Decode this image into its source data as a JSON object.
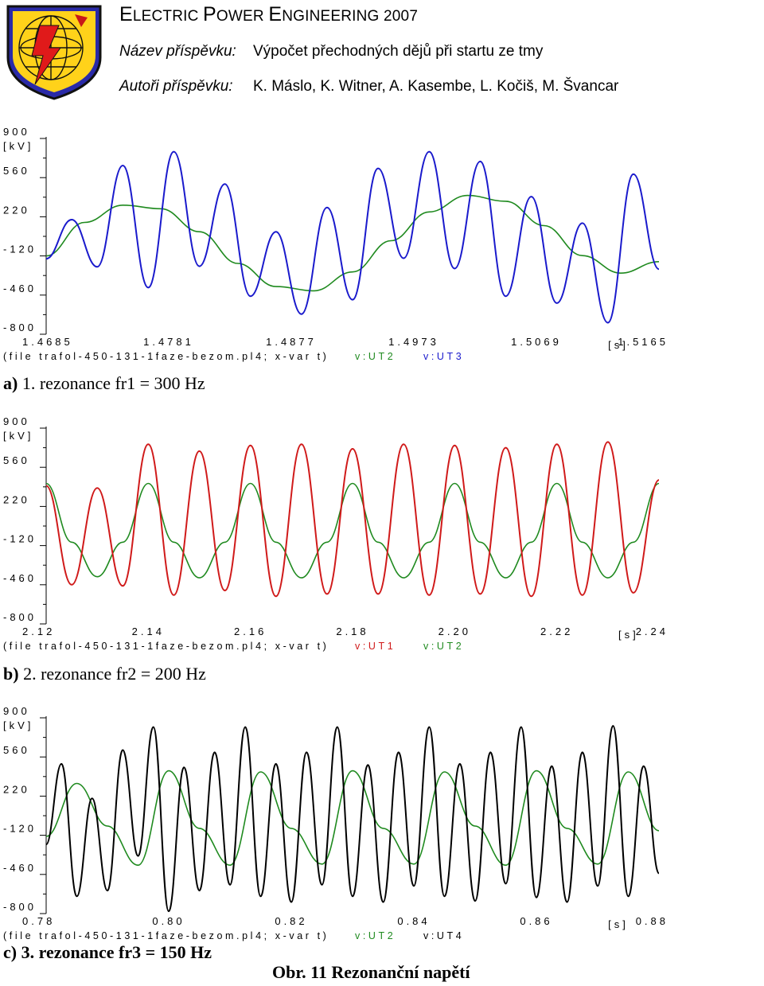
{
  "header": {
    "conference_title": [
      "E",
      "LECTRIC ",
      "P",
      "OWER ",
      "E",
      "NGINEERING 2007"
    ],
    "title_label": "Název příspěvku:",
    "title_value": "Výpočet přechodných dějů při startu ze tmy",
    "authors_label": "Autoři příspěvku:",
    "authors_value": "K. Máslo, K. Witner, A. Kasembe, L. Kočiš, M. Švancar"
  },
  "colors": {
    "blue": "#1a1acc",
    "green": "#1f8a1f",
    "red": "#d01a1a",
    "black": "#000000"
  },
  "chart_data": [
    {
      "type": "line",
      "caption_marker": "a)",
      "caption_text": "1. rezonance  fr1 = 300 Hz",
      "y_tick_labels": [
        "900",
        "560",
        "220",
        "-120",
        "-460",
        "-800"
      ],
      "y_unit": "[kV]",
      "x_unit": "[s]",
      "x_tick_labels": [
        "1.4685",
        "1.4781",
        "1.4877",
        "1.4973",
        "1.5069",
        "1.5165"
      ],
      "xlim": [
        1.4685,
        1.5165
      ],
      "ylim": [
        -800,
        900
      ],
      "footer_file": "(file trafol-450-131-1faze-bezom.pl4; x-var t)",
      "series": [
        {
          "name": "v:UT2",
          "color": "#1f8a1f",
          "shape": "fundamental",
          "x": [
            1.4685,
            1.4715,
            1.4745,
            1.4775,
            1.4805,
            1.4835,
            1.4865,
            1.4895,
            1.4925,
            1.4955,
            1.4985,
            1.5015,
            1.5045,
            1.5075,
            1.5105,
            1.5135,
            1.5165
          ],
          "y": [
            -120,
            171,
            321,
            290,
            90,
            -185,
            -386,
            -423,
            -259,
            12,
            262,
            405,
            355,
            143,
            -117,
            -269,
            -170
          ]
        },
        {
          "name": "v:UT3",
          "color": "#1a1acc",
          "shape": "resonant",
          "x": [
            1.4685,
            1.4705,
            1.4725,
            1.4745,
            1.4765,
            1.4785,
            1.4805,
            1.4825,
            1.4845,
            1.4865,
            1.4885,
            1.4905,
            1.4925,
            1.4945,
            1.4965,
            1.4985,
            1.5005,
            1.5025,
            1.5045,
            1.5065,
            1.5085,
            1.5105,
            1.5125,
            1.5145,
            1.5165
          ],
          "y": [
            -145,
            195,
            -215,
            665,
            -395,
            785,
            -210,
            505,
            -470,
            90,
            -625,
            300,
            -500,
            640,
            -140,
            785,
            -230,
            700,
            -470,
            395,
            -530,
            165,
            -700,
            590,
            -235
          ]
        }
      ]
    },
    {
      "type": "line",
      "caption_marker": "b)",
      "caption_text": "2. rezonance  fr2 = 200 Hz",
      "y_tick_labels": [
        "900",
        "560",
        "220",
        "-120",
        "-460",
        "-800"
      ],
      "y_unit": "[kV]",
      "x_unit": "[s]",
      "x_tick_labels": [
        "2.12",
        "2.14",
        "2.16",
        "2.18",
        "2.20",
        "2.22",
        "2.24"
      ],
      "xlim": [
        2.12,
        2.24
      ],
      "ylim": [
        -800,
        900
      ],
      "footer_file": "(file trafol-450-131-1faze-bezom.pl4; x-var t)",
      "series": [
        {
          "name": "v:UT1",
          "color": "#d01a1a",
          "shape": "resonant",
          "x": [
            2.12,
            2.125,
            2.13,
            2.135,
            2.14,
            2.145,
            2.15,
            2.155,
            2.16,
            2.165,
            2.17,
            2.175,
            2.18,
            2.185,
            2.19,
            2.195,
            2.2,
            2.205,
            2.21,
            2.215,
            2.22,
            2.225,
            2.23,
            2.235,
            2.24
          ],
          "y": [
            400,
            -460,
            380,
            -470,
            760,
            -550,
            700,
            -510,
            750,
            -560,
            760,
            -540,
            720,
            -540,
            760,
            -550,
            750,
            -540,
            730,
            -560,
            760,
            -550,
            780,
            -530,
            450
          ]
        },
        {
          "name": "v:UT2",
          "color": "#1f8a1f",
          "shape": "fundamental",
          "x": [
            2.12,
            2.125,
            2.13,
            2.135,
            2.14,
            2.145,
            2.15,
            2.155,
            2.16,
            2.165,
            2.17,
            2.175,
            2.18,
            2.185,
            2.19,
            2.195,
            2.2,
            2.205,
            2.21,
            2.215,
            2.22,
            2.225,
            2.23,
            2.235,
            2.24
          ],
          "y": [
            420,
            -90,
            -390,
            -90,
            420,
            -90,
            -400,
            -90,
            420,
            -90,
            -400,
            -90,
            420,
            -90,
            -400,
            -90,
            420,
            -90,
            -400,
            -90,
            420,
            -90,
            -400,
            -90,
            420
          ]
        }
      ]
    },
    {
      "type": "line",
      "caption_marker": "c)",
      "caption_text": "3. rezonance  fr3 = 150 Hz",
      "y_tick_labels": [
        "900",
        "560",
        "220",
        "-120",
        "-460",
        "-800"
      ],
      "y_unit": "[kV]",
      "x_unit": "[s]",
      "x_tick_labels": [
        "0.78",
        "0.80",
        "0.82",
        "0.84",
        "0.86",
        "0.88"
      ],
      "xlim": [
        0.78,
        0.88
      ],
      "ylim": [
        -800,
        900
      ],
      "footer_file": "(file trafol-450-131-1faze-bezom.pl4; x-var t)",
      "series": [
        {
          "name": "v:UT2",
          "color": "#1f8a1f",
          "shape": "fundamental",
          "x": [
            0.78,
            0.785,
            0.79,
            0.795,
            0.8,
            0.805,
            0.81,
            0.815,
            0.82,
            0.825,
            0.83,
            0.835,
            0.84,
            0.845,
            0.85,
            0.855,
            0.86,
            0.865,
            0.87,
            0.875,
            0.88
          ],
          "y": [
            -130,
            330,
            -40,
            -380,
            440,
            -60,
            -380,
            430,
            -60,
            -370,
            440,
            -60,
            -370,
            430,
            -40,
            -380,
            440,
            -60,
            -370,
            430,
            -80
          ]
        },
        {
          "name": "v:UT4",
          "color": "#000000",
          "shape": "resonant",
          "x": [
            0.78,
            0.7825,
            0.785,
            0.7875,
            0.79,
            0.7925,
            0.795,
            0.7975,
            0.8,
            0.8025,
            0.805,
            0.8075,
            0.81,
            0.8125,
            0.815,
            0.8175,
            0.82,
            0.8225,
            0.825,
            0.8275,
            0.83,
            0.8325,
            0.835,
            0.8375,
            0.84,
            0.8425,
            0.845,
            0.8475,
            0.85,
            0.8525,
            0.855,
            0.8575,
            0.86,
            0.8625,
            0.865,
            0.8675,
            0.87,
            0.8725,
            0.875,
            0.8775,
            0.88
          ],
          "y": [
            -200,
            500,
            -650,
            200,
            -600,
            620,
            -300,
            820,
            -780,
            470,
            -600,
            600,
            -550,
            820,
            -650,
            500,
            -700,
            600,
            -550,
            820,
            -650,
            490,
            -700,
            600,
            -560,
            820,
            -650,
            500,
            -690,
            600,
            -540,
            820,
            -660,
            480,
            -700,
            600,
            -560,
            830,
            -650,
            480,
            -450
          ]
        }
      ]
    }
  ],
  "figure_caption": "Obr. 11 Rezonanční napětí"
}
